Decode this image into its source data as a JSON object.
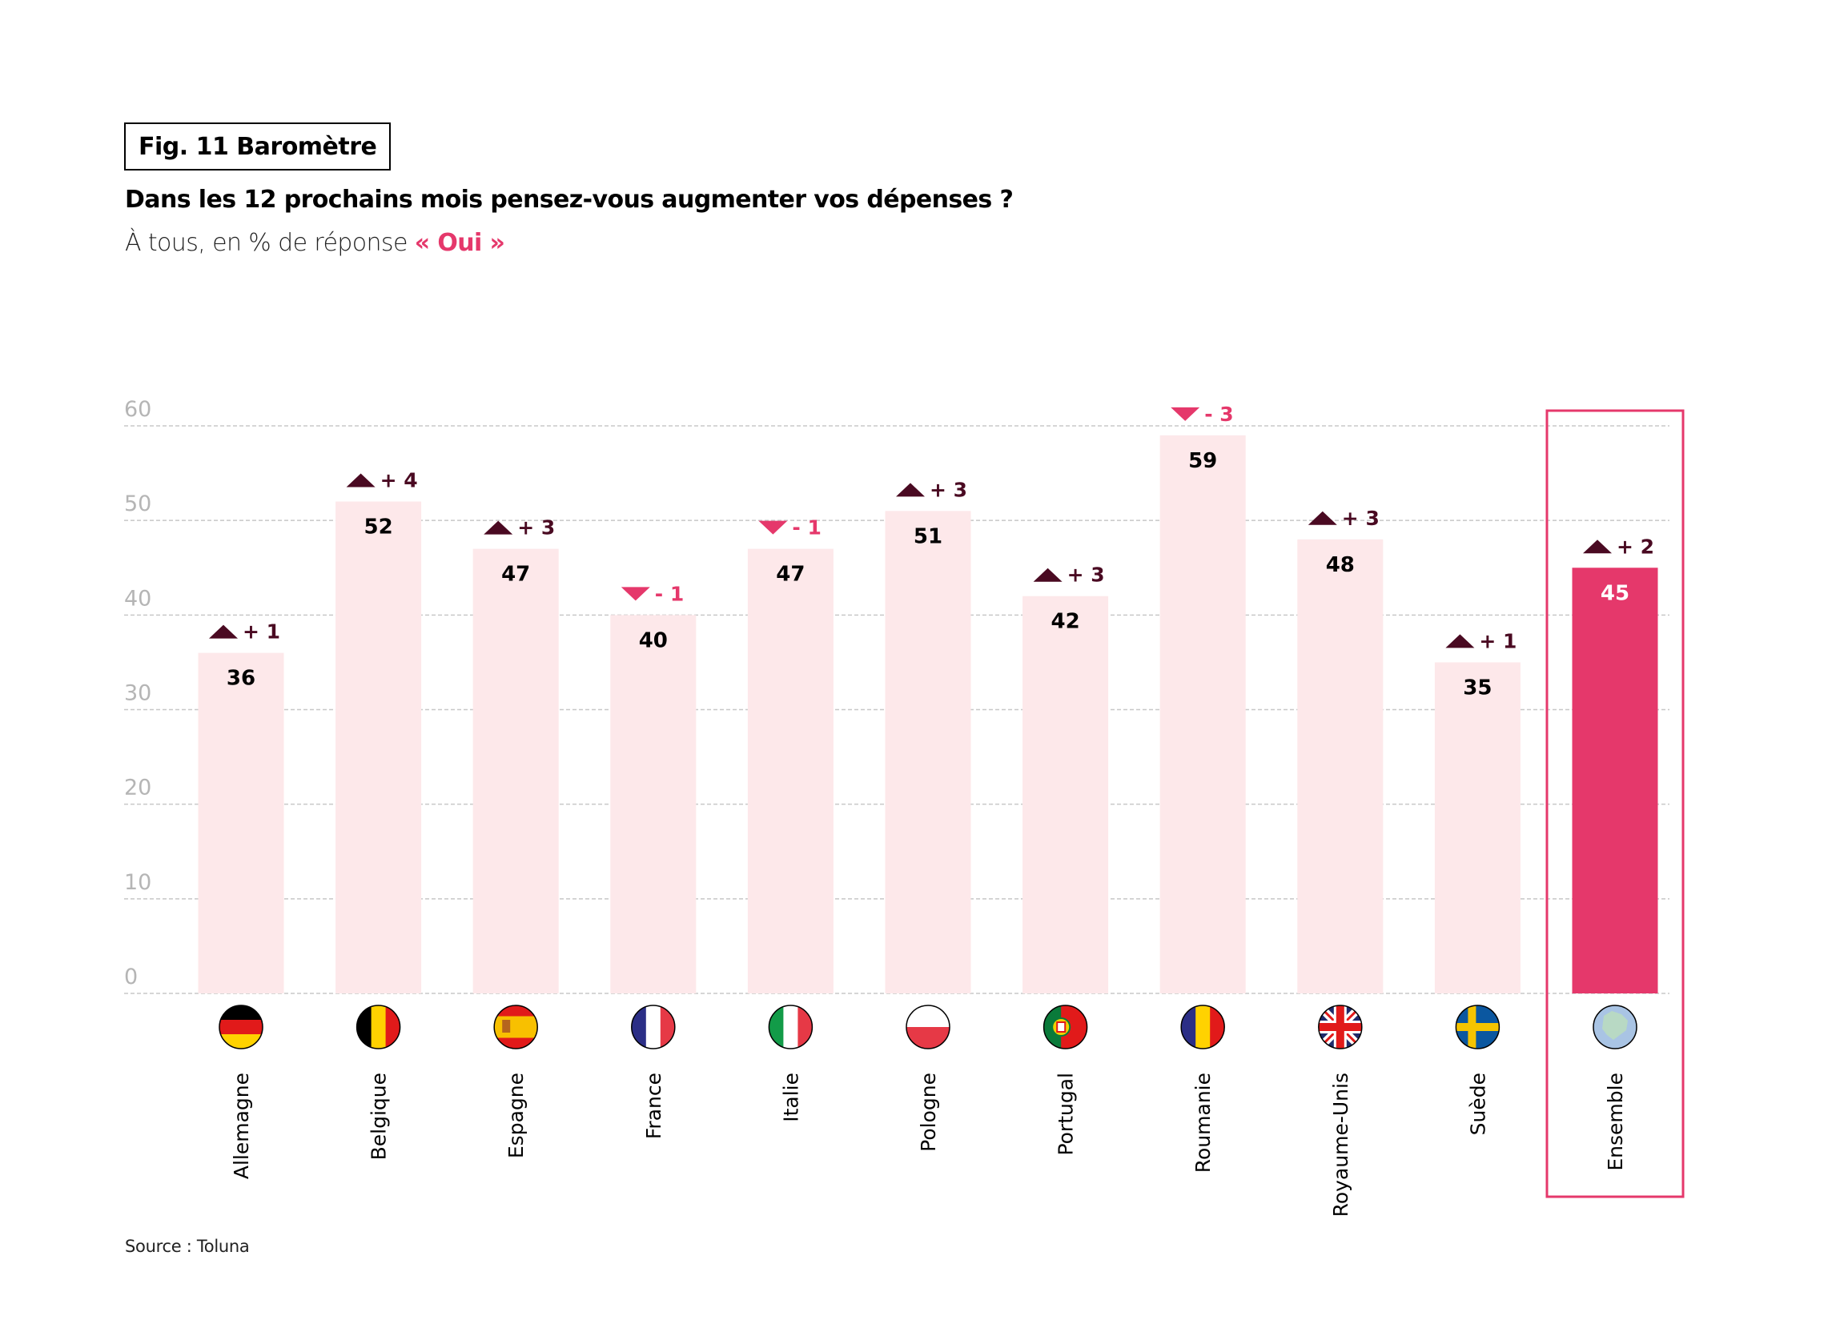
{
  "header": {
    "figure_label": "Fig. 11 Baromètre",
    "question": "Dans les 12 prochains mois pensez-vous augmenter vos dépenses ?",
    "subtitle_prefix": "À tous, en % de réponse ",
    "subtitle_accent": "« Oui »"
  },
  "footer": {
    "source": "Source : Toluna"
  },
  "colors": {
    "bar_light": "#fde8ea",
    "bar_highlight": "#e5386b",
    "up_arrow": "#4a0a22",
    "down_arrow": "#e5386b",
    "grid": "#c8c8c8",
    "tick_text": "#b5b5b5",
    "highlight_frame": "#e5386b"
  },
  "chart_data": {
    "type": "bar",
    "title": "Dans les 12 prochains mois pensez-vous augmenter vos dépenses ?",
    "subtitle": "À tous, en % de réponse « Oui »",
    "xlabel": "",
    "ylabel": "",
    "ylim": [
      0,
      60
    ],
    "yticks": [
      0,
      10,
      20,
      30,
      40,
      50,
      60
    ],
    "grid": true,
    "grid_style": "dashed",
    "categories": [
      "Allemagne",
      "Belgique",
      "Espagne",
      "France",
      "Italie",
      "Pologne",
      "Portugal",
      "Roumanie",
      "Royaume-Unis",
      "Suède",
      "Ensemble"
    ],
    "values": [
      36,
      52,
      47,
      40,
      47,
      51,
      42,
      59,
      48,
      35,
      45
    ],
    "deltas": [
      1,
      4,
      3,
      -1,
      -1,
      3,
      3,
      -3,
      3,
      1,
      2
    ],
    "delta_labels": [
      "+ 1",
      "+ 4",
      "+ 3",
      "- 1",
      "- 1",
      "+ 3",
      "+ 3",
      "- 3",
      "+ 3",
      "+ 1",
      "+ 2"
    ],
    "flags": [
      "flag-germany",
      "flag-belgium",
      "flag-spain",
      "flag-france",
      "flag-italy",
      "flag-poland",
      "flag-portugal",
      "flag-romania",
      "flag-uk",
      "flag-sweden",
      "globe-europe"
    ],
    "highlighted_category": "Ensemble"
  }
}
